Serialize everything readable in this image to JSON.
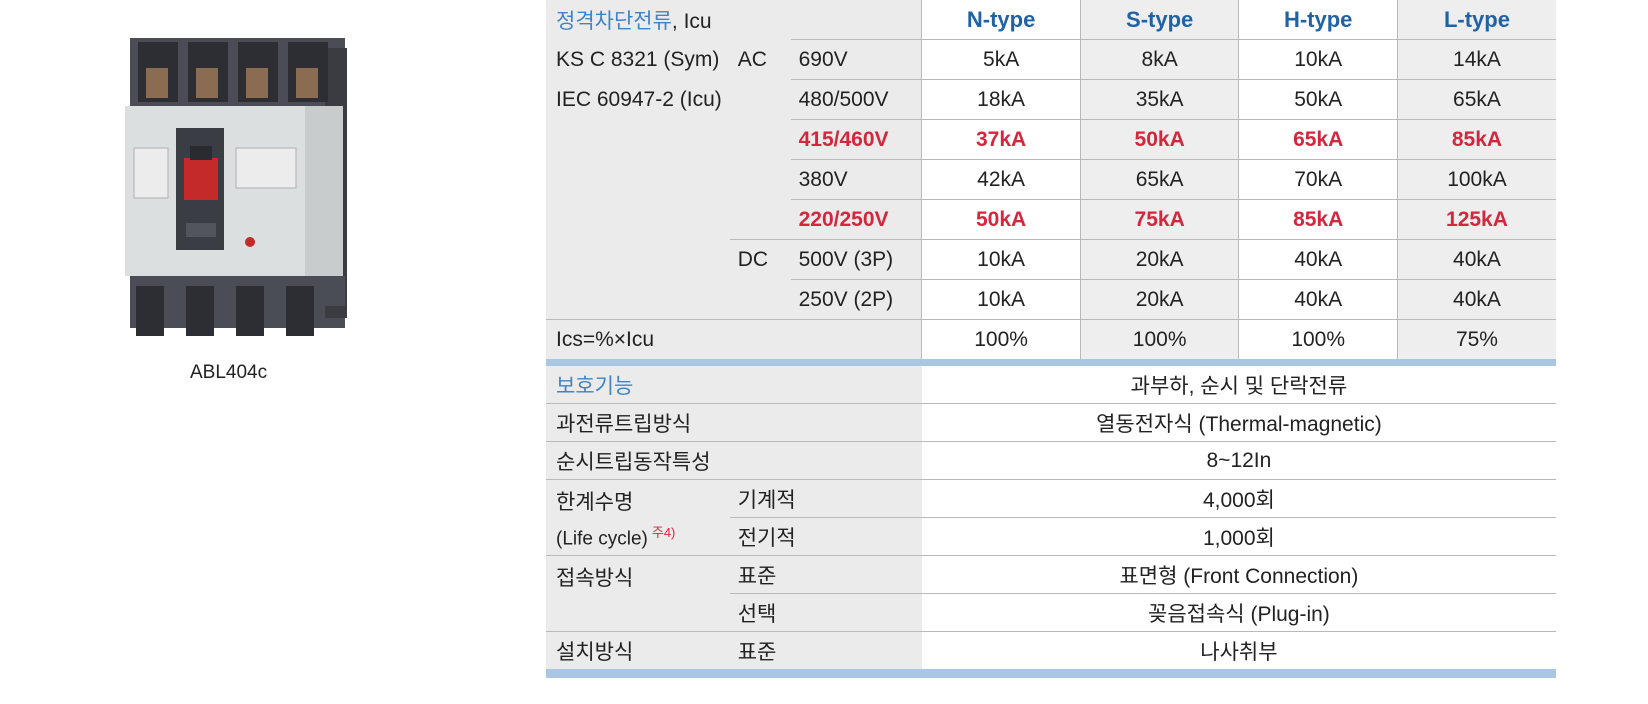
{
  "product": {
    "caption": "ABL404c"
  },
  "table": {
    "header": {
      "title_ko": "정격차단전류",
      "title_suffix": ", Icu",
      "types": [
        "N-type",
        "S-type",
        "H-type",
        "L-type"
      ]
    },
    "standards": [
      "KS C 8321 (Sym)",
      "IEC 60947-2 (Icu)"
    ],
    "ac_label": "AC",
    "dc_label": "DC",
    "breaking": [
      {
        "voltage": "690V",
        "values": [
          "5kA",
          "8kA",
          "10kA",
          "14kA"
        ],
        "highlight": false
      },
      {
        "voltage": "480/500V",
        "values": [
          "18kA",
          "35kA",
          "50kA",
          "65kA"
        ],
        "highlight": false
      },
      {
        "voltage": "415/460V",
        "values": [
          "37kA",
          "50kA",
          "65kA",
          "85kA"
        ],
        "highlight": true
      },
      {
        "voltage": "380V",
        "values": [
          "42kA",
          "65kA",
          "70kA",
          "100kA"
        ],
        "highlight": false
      },
      {
        "voltage": "220/250V",
        "values": [
          "50kA",
          "75kA",
          "85kA",
          "125kA"
        ],
        "highlight": true
      },
      {
        "voltage": "500V (3P)",
        "values": [
          "10kA",
          "20kA",
          "40kA",
          "40kA"
        ],
        "highlight": false
      },
      {
        "voltage": "250V (2P)",
        "values": [
          "10kA",
          "20kA",
          "40kA",
          "40kA"
        ],
        "highlight": false
      }
    ],
    "ics": {
      "label": "Ics=%×Icu",
      "values": [
        "100%",
        "100%",
        "100%",
        "75%"
      ]
    },
    "protection": {
      "label": "보호기능",
      "value": "과부하, 순시 및 단락전류"
    },
    "trip_method": {
      "label": "과전류트립방식",
      "value": "열동전자식 (Thermal-magnetic)"
    },
    "instant_trip": {
      "label": "순시트립동작특성",
      "value": "8~12In"
    },
    "life": {
      "label": "한계수명",
      "label_en": "(Life cycle)",
      "note": "주4)",
      "mech_label": "기계적",
      "mech_value": "4,000회",
      "elec_label": "전기적",
      "elec_value": "1,000회"
    },
    "connection": {
      "label": "접속방식",
      "std_label": "표준",
      "std_value": "표면형 (Front Connection)",
      "opt_label": "선택",
      "opt_value": "꽂음접속식 (Plug-in)"
    },
    "installation": {
      "label": "설치방식",
      "std_label": "표준",
      "value": "나사취부"
    }
  }
}
